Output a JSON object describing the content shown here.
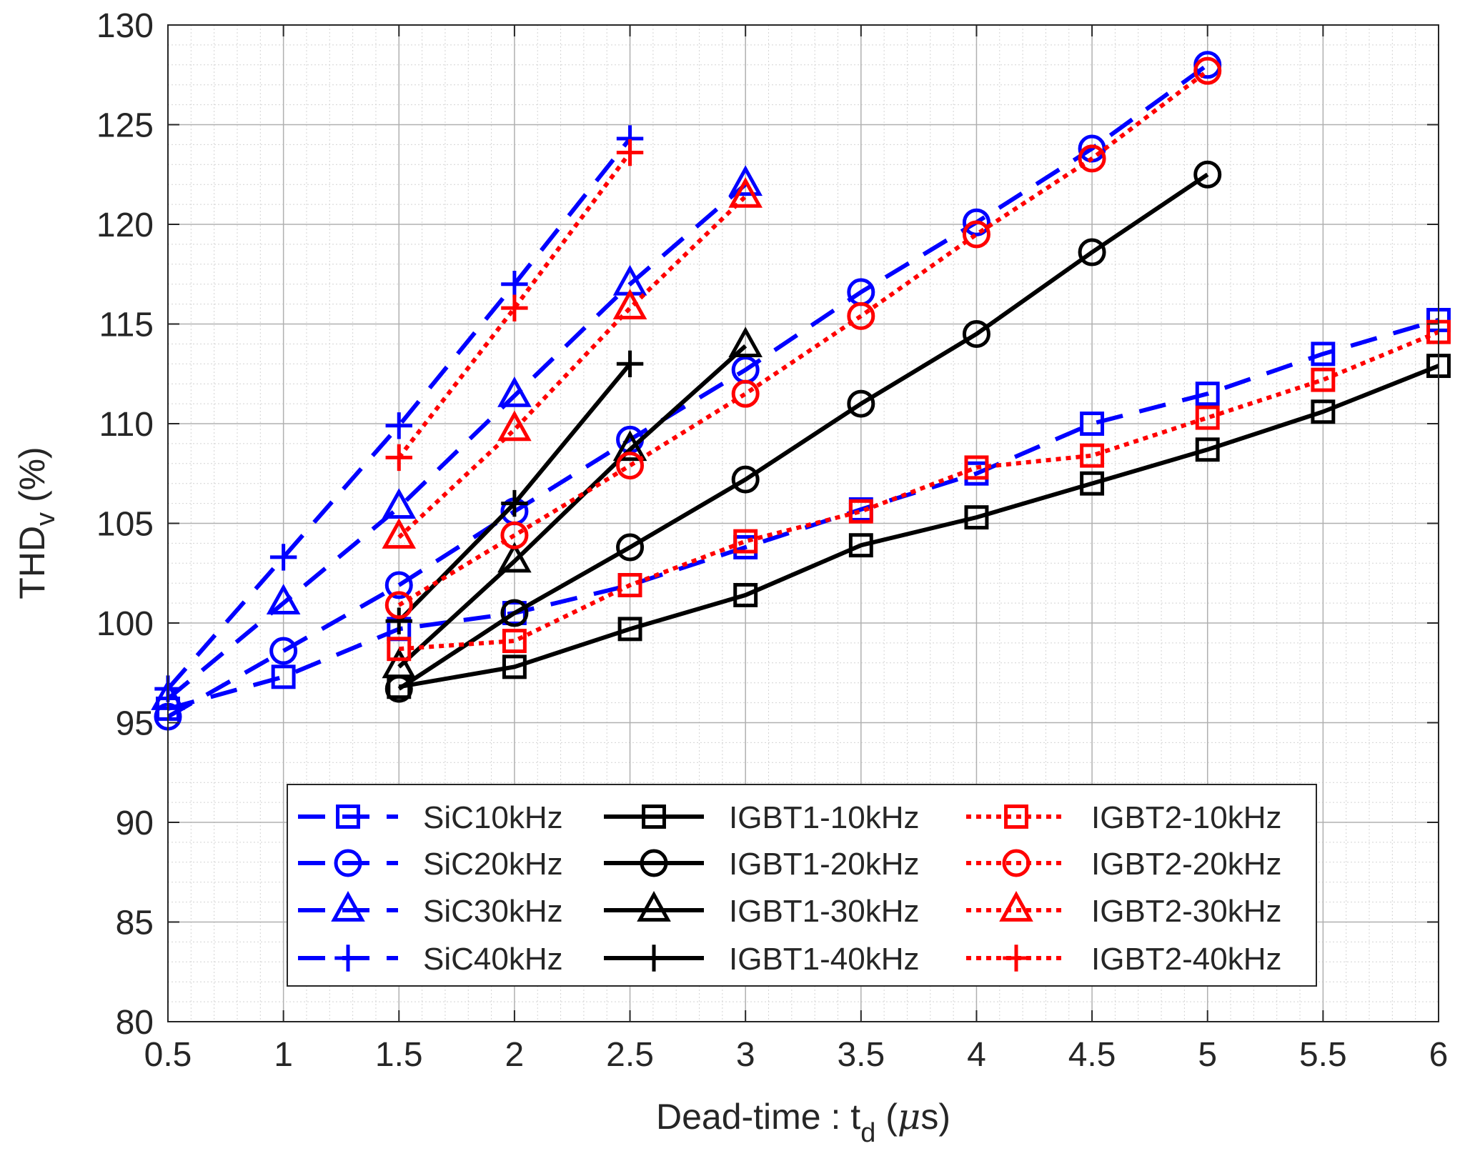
{
  "chart_data": {
    "type": "line",
    "title": "",
    "xlabel": {
      "main": "Dead-time : t",
      "sub": "d",
      "unit": " (",
      "mu": "μ",
      "unit_tail": "s)"
    },
    "ylabel": {
      "main": "THD",
      "sub": "v",
      "unit": " (%)"
    },
    "xlim": [
      0.5,
      6
    ],
    "ylim": [
      80,
      130
    ],
    "x_ticks": [
      "0.5",
      "1",
      "1.5",
      "2",
      "2.5",
      "3",
      "3.5",
      "4",
      "4.5",
      "5",
      "5.5",
      "6"
    ],
    "y_ticks": [
      "80",
      "85",
      "90",
      "95",
      "100",
      "105",
      "110",
      "115",
      "120",
      "125",
      "130"
    ],
    "grid": true,
    "legend_position": "bottom-right",
    "series": [
      {
        "name": "SiC10kHz",
        "color": "#0000ff",
        "style": "dash",
        "marker": "square",
        "x": [
          0.5,
          1,
          1.5,
          2,
          2.5,
          3,
          3.5,
          4,
          4.5,
          5,
          5.5,
          6
        ],
        "y": [
          95.7,
          97.3,
          99.7,
          100.5,
          101.9,
          103.8,
          105.7,
          107.5,
          110.0,
          111.5,
          113.5,
          115.2
        ]
      },
      {
        "name": "SiC20kHz",
        "color": "#0000ff",
        "style": "dash",
        "marker": "circle",
        "x": [
          0.5,
          1,
          1.5,
          2,
          2.5,
          3,
          3.5,
          4,
          4.5,
          5
        ],
        "y": [
          95.3,
          98.6,
          101.9,
          105.6,
          109.2,
          112.7,
          116.6,
          120.1,
          123.8,
          128.0
        ]
      },
      {
        "name": "SiC30kHz",
        "color": "#0000ff",
        "style": "dash",
        "marker": "triangle",
        "x": [
          0.5,
          1,
          1.5,
          2,
          2.5,
          3
        ],
        "y": [
          96.2,
          101.0,
          105.8,
          111.4,
          117.0,
          122.0
        ]
      },
      {
        "name": "SiC40kHz",
        "color": "#0000ff",
        "style": "dash",
        "marker": "plus",
        "x": [
          0.5,
          1,
          1.5,
          2,
          2.5
        ],
        "y": [
          96.7,
          103.3,
          109.9,
          117.0,
          124.3
        ]
      },
      {
        "name": "IGBT1-10kHz",
        "color": "#000000",
        "style": "solid",
        "marker": "square",
        "x": [
          1.5,
          2,
          2.5,
          3,
          3.5,
          4,
          4.5,
          5,
          5.5,
          6
        ],
        "y": [
          96.8,
          97.8,
          99.7,
          101.4,
          103.9,
          105.3,
          107.0,
          108.7,
          110.6,
          112.9
        ]
      },
      {
        "name": "IGBT1-20kHz",
        "color": "#000000",
        "style": "solid",
        "marker": "circle",
        "x": [
          1.5,
          2,
          2.5,
          3,
          3.5,
          4,
          4.5,
          5
        ],
        "y": [
          96.7,
          100.5,
          103.8,
          107.2,
          111.0,
          114.5,
          118.6,
          122.5
        ]
      },
      {
        "name": "IGBT1-30kHz",
        "color": "#000000",
        "style": "solid",
        "marker": "triangle",
        "x": [
          1.5,
          2,
          2.5,
          3
        ],
        "y": [
          97.8,
          103.1,
          108.7,
          113.9
        ]
      },
      {
        "name": "IGBT1-40kHz",
        "color": "#000000",
        "style": "solid",
        "marker": "plus",
        "x": [
          1.5,
          2,
          2.5
        ],
        "y": [
          100.1,
          106.0,
          113.0
        ]
      },
      {
        "name": "IGBT2-10kHz",
        "color": "#ff0000",
        "style": "dot",
        "marker": "square",
        "x": [
          1.5,
          2,
          2.5,
          3,
          3.5,
          4,
          4.5,
          5,
          5.5,
          6
        ],
        "y": [
          98.7,
          99.1,
          101.9,
          104.1,
          105.6,
          107.8,
          108.4,
          110.3,
          112.2,
          114.6
        ]
      },
      {
        "name": "IGBT2-20kHz",
        "color": "#ff0000",
        "style": "dot",
        "marker": "circle",
        "x": [
          1.5,
          2,
          2.5,
          3,
          3.5,
          4,
          4.5,
          5
        ],
        "y": [
          100.9,
          104.4,
          107.9,
          111.5,
          115.4,
          119.5,
          123.3,
          127.7
        ]
      },
      {
        "name": "IGBT2-30kHz",
        "color": "#ff0000",
        "style": "dot",
        "marker": "triangle",
        "x": [
          1.5,
          2,
          2.5,
          3
        ],
        "y": [
          104.3,
          109.7,
          115.8,
          121.4
        ]
      },
      {
        "name": "IGBT2-40kHz",
        "color": "#ff0000",
        "style": "dot",
        "marker": "plus",
        "x": [
          1.5,
          2,
          2.5
        ],
        "y": [
          108.3,
          115.8,
          123.6
        ]
      }
    ]
  }
}
